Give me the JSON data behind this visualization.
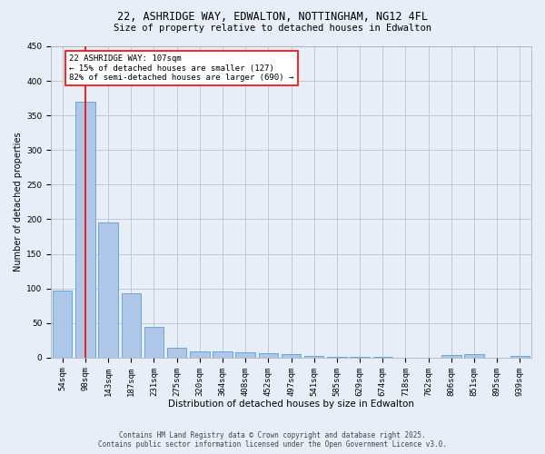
{
  "title_line1": "22, ASHRIDGE WAY, EDWALTON, NOTTINGHAM, NG12 4FL",
  "title_line2": "Size of property relative to detached houses in Edwalton",
  "xlabel": "Distribution of detached houses by size in Edwalton",
  "ylabel": "Number of detached properties",
  "categories": [
    "54sqm",
    "98sqm",
    "143sqm",
    "187sqm",
    "231sqm",
    "275sqm",
    "320sqm",
    "364sqm",
    "408sqm",
    "452sqm",
    "497sqm",
    "541sqm",
    "585sqm",
    "629sqm",
    "674sqm",
    "718sqm",
    "762sqm",
    "806sqm",
    "851sqm",
    "895sqm",
    "939sqm"
  ],
  "values": [
    97,
    370,
    195,
    93,
    45,
    14,
    9,
    9,
    8,
    6,
    5,
    2,
    1,
    1,
    1,
    0,
    0,
    4,
    5,
    0,
    3
  ],
  "bar_color": "#aec6e8",
  "bar_edge_color": "#5a9fd4",
  "grid_color": "#c0c8d8",
  "bg_color": "#e8eef8",
  "red_line_x": 1,
  "annotation_text": "22 ASHRIDGE WAY: 107sqm\n← 15% of detached houses are smaller (127)\n82% of semi-detached houses are larger (690) →",
  "annotation_box_color": "white",
  "annotation_box_edge": "red",
  "footer_line1": "Contains HM Land Registry data © Crown copyright and database right 2025.",
  "footer_line2": "Contains public sector information licensed under the Open Government Licence v3.0.",
  "ylim": [
    0,
    450
  ],
  "yticks": [
    0,
    50,
    100,
    150,
    200,
    250,
    300,
    350,
    400,
    450
  ],
  "title1_fontsize": 8.5,
  "title2_fontsize": 7.5,
  "xlabel_fontsize": 7.5,
  "ylabel_fontsize": 7.0,
  "tick_fontsize": 6.5,
  "annot_fontsize": 6.5,
  "footer_fontsize": 5.5
}
